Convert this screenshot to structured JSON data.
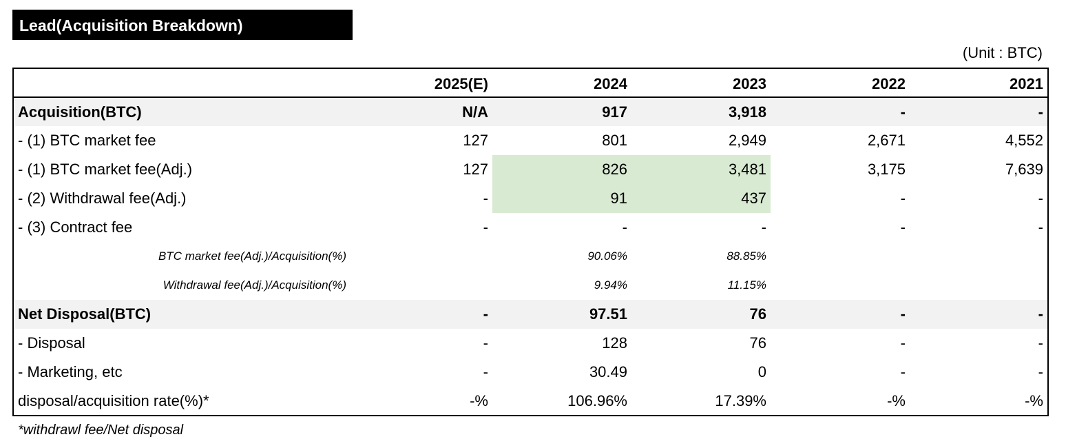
{
  "header": {
    "title": "Lead(Acquisition Breakdown)",
    "unit": "(Unit : BTC)"
  },
  "table": {
    "columns": [
      "2025(E)",
      "2024",
      "2023",
      "2022",
      "2021"
    ],
    "rows": [
      {
        "label": "Acquisition(BTC)",
        "values": [
          "N/A",
          "917",
          "3,918",
          "-",
          "-"
        ]
      },
      {
        "label": "- (1) BTC market fee",
        "values": [
          "127",
          "801",
          "2,949",
          "2,671",
          "4,552"
        ]
      },
      {
        "label": "- (1) BTC market fee(Adj.)",
        "values": [
          "127",
          "826",
          "3,481",
          "3,175",
          "7,639"
        ]
      },
      {
        "label": "- (2) Withdrawal fee(Adj.)",
        "values": [
          "-",
          "91",
          "437",
          "-",
          "-"
        ]
      },
      {
        "label": "- (3) Contract fee",
        "values": [
          "-",
          "-",
          "-",
          "-",
          "-"
        ]
      },
      {
        "label": "BTC market fee(Adj.)/Acquisition(%)",
        "values": [
          null,
          "90.06%",
          "88.85%",
          null,
          null
        ]
      },
      {
        "label": "Withdrawal fee(Adj.)/Acquisition(%)",
        "values": [
          null,
          "9.94%",
          "11.15%",
          null,
          null
        ]
      },
      {
        "label": "Net Disposal(BTC)",
        "values": [
          "-",
          "97.51",
          "76",
          "-",
          "-"
        ]
      },
      {
        "label": "- Disposal",
        "values": [
          "-",
          "128",
          "76",
          "-",
          "-"
        ]
      },
      {
        "label": "- Marketing, etc",
        "values": [
          "-",
          "30.49",
          "0",
          "-",
          "-"
        ]
      },
      {
        "label": "disposal/acquisition rate(%)*",
        "values": [
          "-%",
          "106.96%",
          "17.39%",
          "-%",
          "-%"
        ]
      }
    ]
  },
  "footnote": "*withdrawl fee/Net disposal"
}
